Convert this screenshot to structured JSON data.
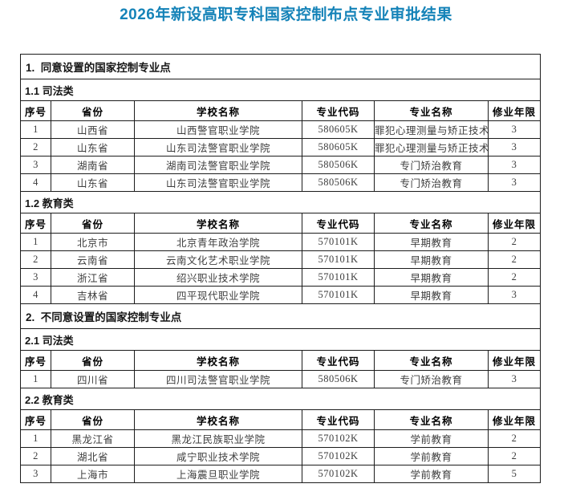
{
  "page_title": "2026年新设高职专科国家控制布点专业审批结果",
  "colors": {
    "title_accent": "#1583b8",
    "table_border": "#1c1c1c",
    "body_text": "#3e3e3e",
    "heading_text": "#161616"
  },
  "table": {
    "columns": [
      "序号",
      "省份",
      "学校名称",
      "专业代码",
      "专业名称",
      "修业年限"
    ],
    "sections": [
      {
        "heading": "1.  同意设置的国家控制专业点",
        "subsections": [
          {
            "heading": "1.1 司法类",
            "rows": [
              [
                "1",
                "山西省",
                "山西警官职业学院",
                "580605K",
                "罪犯心理测量与矫正技术",
                "3"
              ],
              [
                "2",
                "山东省",
                "山东司法警官职业学院",
                "580605K",
                "罪犯心理测量与矫正技术",
                "3"
              ],
              [
                "3",
                "湖南省",
                "湖南司法警官职业学院",
                "580506K",
                "专门矫治教育",
                "3"
              ],
              [
                "4",
                "山东省",
                "山东司法警官职业学院",
                "580506K",
                "专门矫治教育",
                "3"
              ]
            ]
          },
          {
            "heading": "1.2 教育类",
            "rows": [
              [
                "1",
                "北京市",
                "北京青年政治学院",
                "570101K",
                "早期教育",
                "2"
              ],
              [
                "2",
                "云南省",
                "云南文化艺术职业学院",
                "570101K",
                "早期教育",
                "2"
              ],
              [
                "3",
                "浙江省",
                "绍兴职业技术学院",
                "570101K",
                "早期教育",
                "2"
              ],
              [
                "4",
                "吉林省",
                "四平现代职业学院",
                "570101K",
                "早期教育",
                "3"
              ]
            ]
          }
        ]
      },
      {
        "heading": "2.  不同意设置的国家控制专业点",
        "subsections": [
          {
            "heading": "2.1 司法类",
            "rows": [
              [
                "1",
                "四川省",
                "四川司法警官职业学院",
                "580506K",
                "专门矫治教育",
                "3"
              ]
            ]
          },
          {
            "heading": "2.2 教育类",
            "rows": [
              [
                "1",
                "黑龙江省",
                "黑龙江民族职业学院",
                "570102K",
                "学前教育",
                "2"
              ],
              [
                "2",
                "湖北省",
                "咸宁职业技术学院",
                "570102K",
                "学前教育",
                "2"
              ],
              [
                "3",
                "上海市",
                "上海震旦职业学院",
                "570102K",
                "学前教育",
                "5"
              ]
            ]
          }
        ]
      }
    ]
  }
}
